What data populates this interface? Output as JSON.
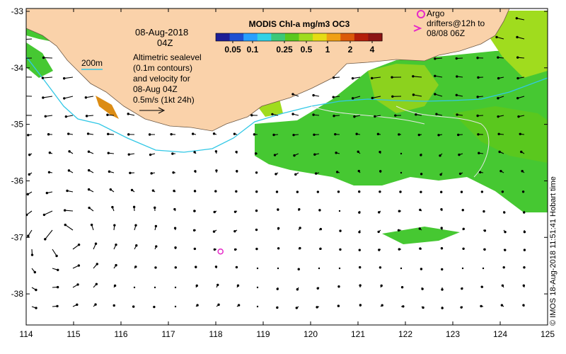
{
  "date_label": "08-Aug-2018",
  "time_label": "04Z",
  "colorbar": {
    "title": "MODIS Chl-a mg/m3 OC3",
    "ticks": [
      "0.05",
      "0.1",
      "0.25",
      "0.5",
      "1",
      "2",
      "4"
    ],
    "colors": [
      "#1e1e96",
      "#1e50d2",
      "#28a0ff",
      "#32d2e6",
      "#3cc878",
      "#5ac81e",
      "#a0dc1e",
      "#e6dc14",
      "#f0a014",
      "#dc5a0a",
      "#b41e0a",
      "#8c1414"
    ]
  },
  "depth_contour": {
    "label": "200m",
    "color": "#32c8e6"
  },
  "altimetry_note": [
    "Altimetric sealevel",
    "(0.1m contours)",
    "and velocity for",
    "08-Aug 04Z"
  ],
  "scale_label": "0.5m/s (1kt 24h)",
  "argo_legend": {
    "line1": "Argo",
    "line2": "drifters@12h to",
    "line3": "08/08 06Z",
    "marker_color": "#e628c8"
  },
  "argo_float": {
    "lon": 118.1,
    "lat": -37.25
  },
  "credit": "© IMOS 18-Aug-2018 11:51:41 Hobart time",
  "axes": {
    "lon_ticks": [
      "114",
      "115",
      "116",
      "117",
      "118",
      "119",
      "120",
      "121",
      "122",
      "123",
      "124",
      "125"
    ],
    "lat_ticks": [
      "-33",
      "-34",
      "-35",
      "-36",
      "-37",
      "-38"
    ],
    "lon_range": [
      114,
      125
    ],
    "lat_range": [
      -38.55,
      -32.95
    ]
  },
  "colors": {
    "land": "#fad2aa",
    "chl_green": "#46c832",
    "chl_lime": "#a0dc1e",
    "vector": "#000000"
  }
}
